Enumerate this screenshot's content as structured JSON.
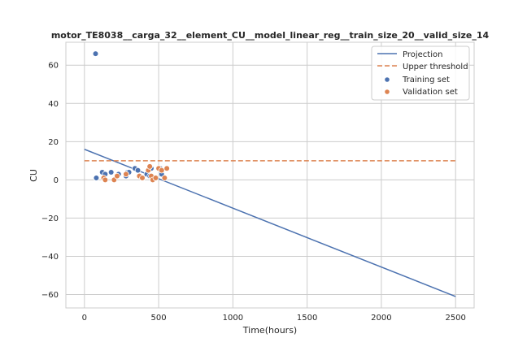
{
  "chart_data": {
    "type": "scatter",
    "title": "motor_TE8038__carga_32__element_CU__model_linear_reg__train_size_20__valid_size_14",
    "xlabel": "Time(hours)",
    "ylabel": "CU",
    "xlim": [
      -125,
      2625
    ],
    "ylim": [
      -67,
      72
    ],
    "xticks": [
      0,
      500,
      1000,
      1500,
      2000,
      2500
    ],
    "yticks": [
      -60,
      -40,
      -20,
      0,
      20,
      40,
      60
    ],
    "xtick_labels": [
      "0",
      "500",
      "1000",
      "1500",
      "2000",
      "2500"
    ],
    "ytick_labels": [
      "−60",
      "−40",
      "−20",
      "0",
      "20",
      "40",
      "60"
    ],
    "grid": true,
    "legend_placement": "top-right",
    "series": [
      {
        "name": "Projection",
        "kind": "line",
        "color": "#4c72b0",
        "x": [
          0,
          2500
        ],
        "y": [
          16,
          -61
        ]
      },
      {
        "name": "Upper threshold",
        "kind": "dashed-line",
        "color": "#dd8452",
        "x": [
          0,
          2500
        ],
        "y": [
          10,
          10
        ]
      },
      {
        "name": "Training set",
        "kind": "scatter",
        "color": "#4c72b0",
        "x": [
          75,
          80,
          120,
          180,
          230,
          280,
          290,
          300,
          340,
          360,
          420,
          440,
          450,
          510,
          520,
          280,
          140
        ],
        "y": [
          66,
          1,
          4,
          4,
          3,
          2,
          4,
          4,
          6,
          5,
          3,
          2,
          6,
          6,
          3,
          2,
          3
        ]
      },
      {
        "name": "Validation set",
        "kind": "scatter",
        "color": "#dd8452",
        "x": [
          130,
          140,
          200,
          220,
          280,
          370,
          390,
          430,
          440,
          450,
          460,
          480,
          500,
          520,
          540,
          555
        ],
        "y": [
          1,
          0,
          0,
          2,
          3,
          2,
          1,
          5,
          7,
          2,
          0,
          1,
          6,
          5,
          1,
          6
        ]
      }
    ]
  }
}
